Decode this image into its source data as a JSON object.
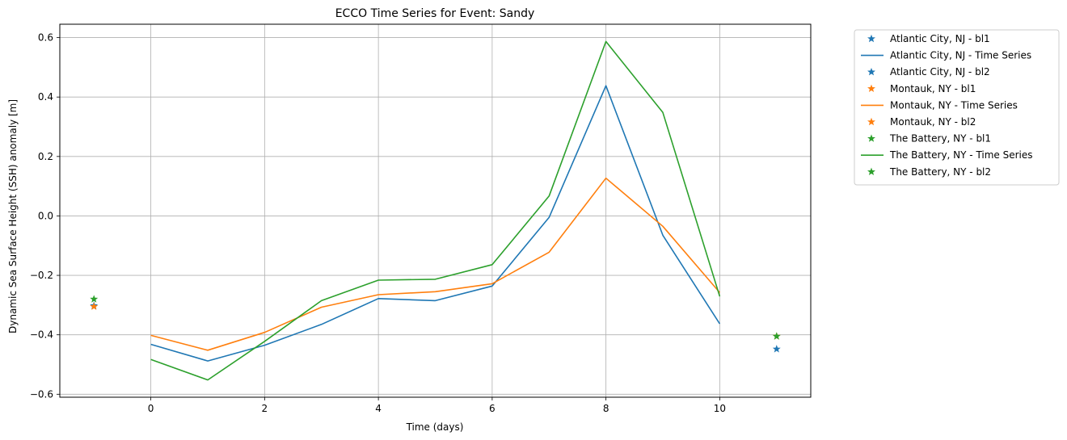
{
  "chart_data": {
    "type": "line",
    "title": "ECCO Time Series for Event: Sandy",
    "xlabel": "Time (days)",
    "ylabel": "Dynamic Sea Surface Height (SSH) anomaly [m]",
    "xlim": [
      -1.6,
      11.6
    ],
    "ylim": [
      -0.61,
      0.645
    ],
    "xticks": [
      0,
      2,
      4,
      6,
      8,
      10
    ],
    "yticks": [
      -0.6,
      -0.4,
      -0.2,
      0.0,
      0.2,
      0.4,
      0.6
    ],
    "xtick_labels": [
      "0",
      "2",
      "4",
      "6",
      "8",
      "10"
    ],
    "ytick_labels": [
      "−0.6",
      "−0.4",
      "−0.2",
      "0.0",
      "0.2",
      "0.4",
      "0.6"
    ],
    "grid": true,
    "legend_position": "outside-top-right",
    "x": [
      0,
      1,
      2,
      3,
      4,
      5,
      6,
      7,
      8,
      9,
      10
    ],
    "series": [
      {
        "name": "Atlantic City, NJ - Time Series",
        "color": "#1f77b4",
        "values": [
          -0.432,
          -0.488,
          -0.435,
          -0.365,
          -0.278,
          -0.285,
          -0.236,
          -0.005,
          0.438,
          -0.065,
          -0.363
        ]
      },
      {
        "name": "Montauk, NY - Time Series",
        "color": "#ff7f0e",
        "values": [
          -0.402,
          -0.452,
          -0.392,
          -0.307,
          -0.265,
          -0.255,
          -0.228,
          -0.122,
          0.127,
          -0.035,
          -0.258
        ]
      },
      {
        "name": "The Battery, NY - Time Series",
        "color": "#2ca02c",
        "values": [
          -0.483,
          -0.552,
          -0.422,
          -0.285,
          -0.216,
          -0.213,
          -0.164,
          0.067,
          0.587,
          0.348,
          -0.271
        ]
      }
    ],
    "markers": [
      {
        "name": "Atlantic City, NJ - bl1",
        "color": "#1f77b4",
        "x": -1,
        "y": -0.302
      },
      {
        "name": "Atlantic City, NJ - bl2",
        "color": "#1f77b4",
        "x": 11,
        "y": -0.448
      },
      {
        "name": "Montauk, NY - bl1",
        "color": "#ff7f0e",
        "x": -1,
        "y": -0.305
      },
      {
        "name": "Montauk, NY - bl2",
        "color": "#ff7f0e",
        "x": 11,
        "y": -0.405
      },
      {
        "name": "The Battery, NY - bl1",
        "color": "#2ca02c",
        "x": -1,
        "y": -0.28
      },
      {
        "name": "The Battery, NY - bl2",
        "color": "#2ca02c",
        "x": 11,
        "y": -0.405
      }
    ],
    "legend": [
      {
        "label": "Atlantic City, NJ - bl1",
        "kind": "marker",
        "color": "#1f77b4"
      },
      {
        "label": "Atlantic City, NJ - Time Series",
        "kind": "line",
        "color": "#1f77b4"
      },
      {
        "label": "Atlantic City, NJ - bl2",
        "kind": "marker",
        "color": "#1f77b4"
      },
      {
        "label": "Montauk, NY - bl1",
        "kind": "marker",
        "color": "#ff7f0e"
      },
      {
        "label": "Montauk, NY - Time Series",
        "kind": "line",
        "color": "#ff7f0e"
      },
      {
        "label": "Montauk, NY - bl2",
        "kind": "marker",
        "color": "#ff7f0e"
      },
      {
        "label": "The Battery, NY - bl1",
        "kind": "marker",
        "color": "#2ca02c"
      },
      {
        "label": "The Battery, NY - Time Series",
        "kind": "line",
        "color": "#2ca02c"
      },
      {
        "label": "The Battery, NY - bl2",
        "kind": "marker",
        "color": "#2ca02c"
      }
    ]
  }
}
